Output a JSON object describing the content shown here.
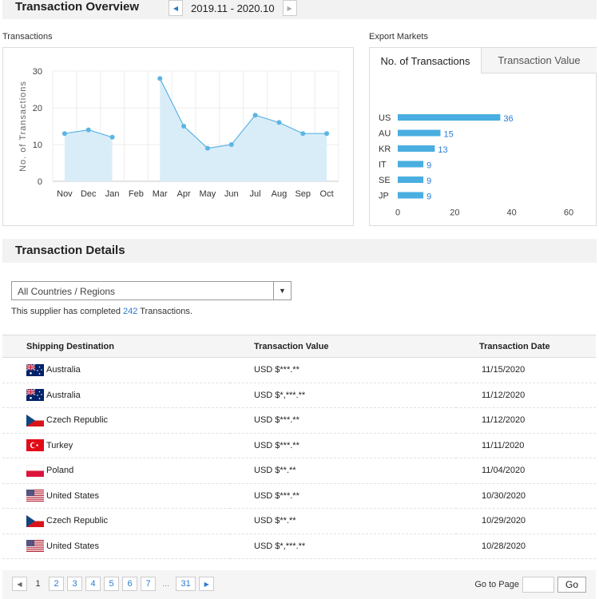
{
  "overview": {
    "title": "Transaction Overview",
    "period": "2019.11 - 2020.10",
    "prev_icon": "caret-left-icon",
    "next_icon": "caret-right-icon"
  },
  "transactions_caption": "Transactions",
  "export_caption": "Export Markets",
  "export_tabs": [
    "No. of Transactions",
    "Transaction Value"
  ],
  "colors": {
    "accent": "#2a7bd4",
    "line": "#5bb5e3",
    "area": "#d9edf9",
    "bar": "#4aaee0"
  },
  "chart_data": [
    {
      "type": "line",
      "x": [
        "Nov",
        "Dec",
        "Jan",
        "Feb",
        "Mar",
        "Apr",
        "May",
        "Jun",
        "Jul",
        "Aug",
        "Sep",
        "Oct"
      ],
      "series": [
        {
          "values": [
            13,
            14,
            12,
            null,
            28,
            15,
            9,
            10,
            18,
            16,
            13,
            13
          ]
        }
      ],
      "ylabel": "No. of Transactions",
      "yticks": [
        0,
        10,
        20,
        30
      ],
      "ylim": [
        0,
        30
      ],
      "grid": true,
      "area_fill": true
    },
    {
      "type": "bar",
      "orientation": "horizontal",
      "categories": [
        "US",
        "AU",
        "KR",
        "IT",
        "SE",
        "JP"
      ],
      "values": [
        36,
        15,
        13,
        9,
        9,
        9
      ],
      "xticks": [
        0,
        20,
        40,
        60
      ],
      "xlim": [
        0,
        60
      ],
      "data_labels": true
    }
  ],
  "details": {
    "title": "Transaction Details",
    "filter_value": "All Countries / Regions",
    "filter_icon": "caret-down-icon",
    "completed_prefix": "This supplier has completed",
    "completed_count": "242",
    "completed_suffix": "Transactions.",
    "columns": [
      "Shipping Destination",
      "Transaction Value",
      "Transaction Date"
    ],
    "rows": [
      {
        "country": "Australia",
        "flag": "au",
        "value": "USD $***.**",
        "date": "11/15/2020"
      },
      {
        "country": "Australia",
        "flag": "au",
        "value": "USD $*,***.**",
        "date": "11/12/2020"
      },
      {
        "country": "Czech Republic",
        "flag": "cz",
        "value": "USD $***.**",
        "date": "11/12/2020"
      },
      {
        "country": "Turkey",
        "flag": "tr",
        "value": "USD $***.**",
        "date": "11/11/2020"
      },
      {
        "country": "Poland",
        "flag": "pl",
        "value": "USD $**.**",
        "date": "11/04/2020"
      },
      {
        "country": "United States",
        "flag": "us",
        "value": "USD $***.**",
        "date": "10/30/2020"
      },
      {
        "country": "Czech Republic",
        "flag": "cz",
        "value": "USD $**.**",
        "date": "10/29/2020"
      },
      {
        "country": "United States",
        "flag": "us",
        "value": "USD $*,***.**",
        "date": "10/28/2020"
      }
    ]
  },
  "pagination": {
    "current": "1",
    "pages": [
      "2",
      "3",
      "4",
      "5",
      "6",
      "7"
    ],
    "ellipsis": "...",
    "last": "31",
    "goto_label": "Go to Page",
    "go_button": "Go"
  }
}
